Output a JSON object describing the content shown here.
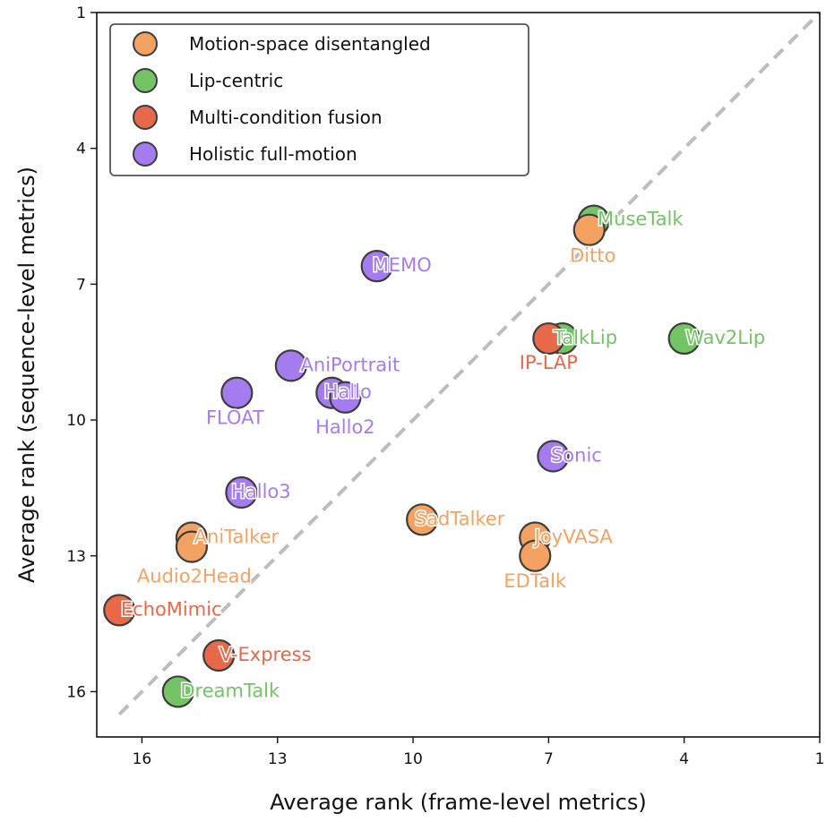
{
  "chart_data": {
    "type": "scatter",
    "title": "",
    "xlabel": "Average rank (frame-level metrics)",
    "ylabel": "Average rank (sequence-level metrics)",
    "xlim": [
      17,
      1
    ],
    "ylim": [
      17,
      1
    ],
    "xticks": [
      "16",
      "13",
      "10",
      "7",
      "4",
      "1"
    ],
    "yticks": [
      "1",
      "4",
      "7",
      "10",
      "13",
      "16"
    ],
    "reference_line": "y = x (dashed, gray)",
    "legend_position": "top-left",
    "categories": [
      {
        "name": "Motion-space disentangled",
        "color": "#f4a261"
      },
      {
        "name": "Lip-centric",
        "color": "#74c365"
      },
      {
        "name": "Multi-condition fusion",
        "color": "#e8684a"
      },
      {
        "name": "Holistic full-motion",
        "color": "#a57cf0"
      }
    ],
    "points": [
      {
        "label": "MuseTalk",
        "category": "Lip-centric",
        "x": 6.0,
        "y": 5.6
      },
      {
        "label": "Ditto",
        "category": "Motion-space disentangled",
        "x": 6.1,
        "y": 5.8
      },
      {
        "label": "MEMO",
        "category": "Holistic full-motion",
        "x": 10.8,
        "y": 6.6
      },
      {
        "label": "TalkLip",
        "category": "Lip-centric",
        "x": 6.7,
        "y": 8.2
      },
      {
        "label": "IP-LAP",
        "category": "Multi-condition fusion",
        "x": 7.0,
        "y": 8.2
      },
      {
        "label": "Wav2Lip",
        "category": "Lip-centric",
        "x": 4.0,
        "y": 8.2
      },
      {
        "label": "AniPortrait",
        "category": "Holistic full-motion",
        "x": 12.7,
        "y": 8.8
      },
      {
        "label": "Hallo",
        "category": "Holistic full-motion",
        "x": 11.8,
        "y": 9.4
      },
      {
        "label": "Hallo2",
        "category": "Holistic full-motion",
        "x": 11.5,
        "y": 9.5
      },
      {
        "label": "FLOAT",
        "category": "Holistic full-motion",
        "x": 13.9,
        "y": 9.4
      },
      {
        "label": "Sonic",
        "category": "Holistic full-motion",
        "x": 6.9,
        "y": 10.8
      },
      {
        "label": "Hallo3",
        "category": "Holistic full-motion",
        "x": 13.8,
        "y": 11.6
      },
      {
        "label": "SadTalker",
        "category": "Motion-space disentangled",
        "x": 9.8,
        "y": 12.2
      },
      {
        "label": "AniTalker",
        "category": "Motion-space disentangled",
        "x": 14.9,
        "y": 12.6
      },
      {
        "label": "Audio2Head",
        "category": "Motion-space disentangled",
        "x": 14.9,
        "y": 12.8
      },
      {
        "label": "JoyVASA",
        "category": "Motion-space disentangled",
        "x": 7.3,
        "y": 12.6
      },
      {
        "label": "EDTalk",
        "category": "Motion-space disentangled",
        "x": 7.3,
        "y": 13.0
      },
      {
        "label": "EchoMimic",
        "category": "Multi-condition fusion",
        "x": 16.5,
        "y": 14.2
      },
      {
        "label": "V-Express",
        "category": "Multi-condition fusion",
        "x": 14.3,
        "y": 15.2
      },
      {
        "label": "DreamTalk",
        "category": "Lip-centric",
        "x": 15.2,
        "y": 16.0
      }
    ]
  }
}
